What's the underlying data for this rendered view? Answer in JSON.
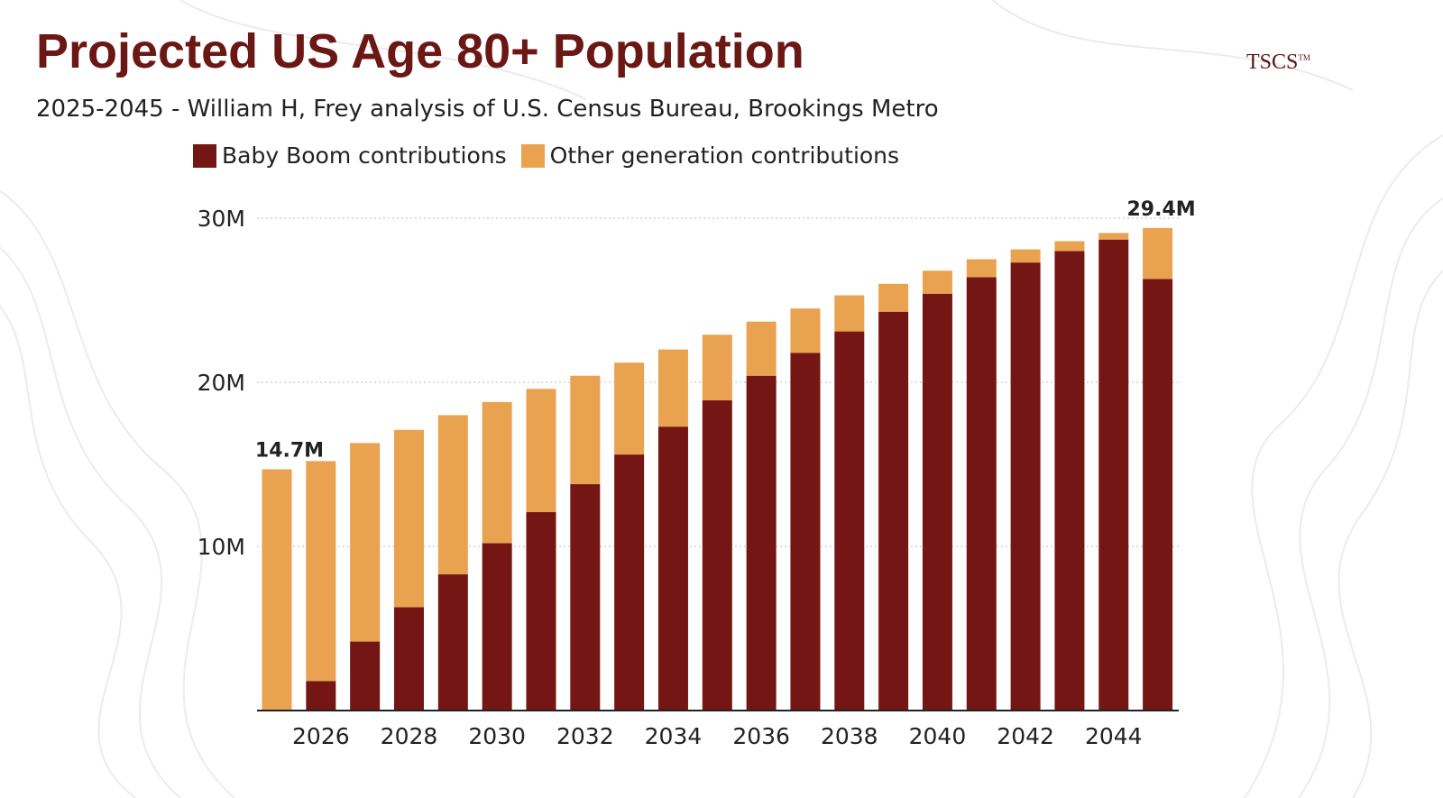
{
  "header": {
    "title": "Projected US Age 80+ Population",
    "subtitle": "2025-2045 - William H, Frey analysis of U.S. Census Bureau, Brookings Metro",
    "logo": "TSCS",
    "logo_mark": "TM"
  },
  "chart_data": {
    "type": "bar",
    "stacked": true,
    "title": "Projected US Age 80+ Population",
    "xlabel": "",
    "ylabel": "",
    "ylim": [
      0,
      30
    ],
    "yticks": [
      10,
      20,
      30
    ],
    "ytick_labels": [
      "10M",
      "20M",
      "30M"
    ],
    "grid": true,
    "legend_position": "top",
    "categories": [
      2025,
      2026,
      2027,
      2028,
      2029,
      2030,
      2031,
      2032,
      2033,
      2034,
      2035,
      2036,
      2037,
      2038,
      2039,
      2040,
      2041,
      2042,
      2043,
      2044,
      2045
    ],
    "xtick_labels": [
      "2026",
      "2028",
      "2030",
      "2032",
      "2034",
      "2036",
      "2038",
      "2040",
      "2042",
      "2044"
    ],
    "series": [
      {
        "name": "Baby Boom contributions",
        "color": "#731614",
        "values": [
          0,
          1.8,
          4.2,
          6.3,
          8.3,
          10.2,
          12.1,
          13.8,
          15.6,
          17.3,
          18.9,
          20.4,
          21.8,
          23.1,
          24.3,
          25.4,
          26.4,
          27.3,
          28.0,
          28.7,
          26.3
        ]
      },
      {
        "name": "Other generation contributions",
        "color": "#e9a24f",
        "values": [
          14.7,
          13.4,
          12.1,
          10.8,
          9.7,
          8.6,
          7.5,
          6.6,
          5.6,
          4.7,
          4.0,
          3.3,
          2.7,
          2.2,
          1.7,
          1.4,
          1.1,
          0.8,
          0.6,
          0.4,
          3.1
        ]
      }
    ],
    "annotations": [
      {
        "category": 2025,
        "text": "14.7M"
      },
      {
        "category": 2045,
        "text": "29.4M"
      }
    ]
  }
}
